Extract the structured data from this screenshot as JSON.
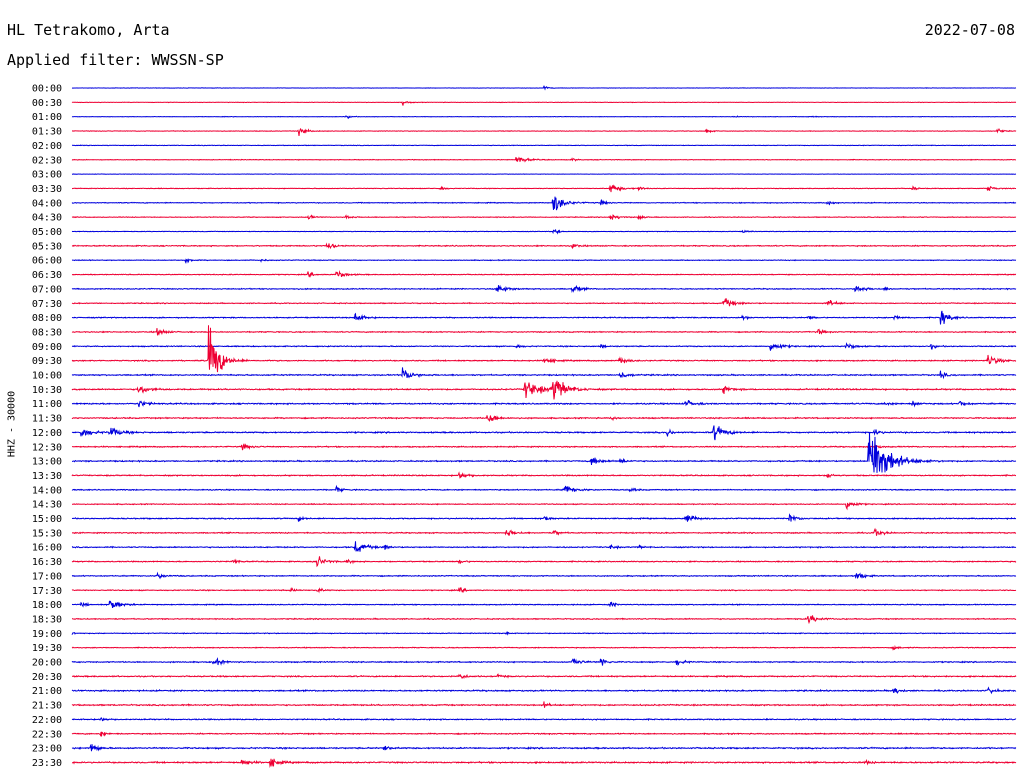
{
  "header": {
    "station": "HL Tetrakomo, Arta",
    "date": "2022-07-08",
    "filter": "Applied filter: WWSSN-SP"
  },
  "channel_label": "HHZ - 30000",
  "colors": {
    "blue": "#0000dd",
    "red": "#ee0033"
  },
  "chart_data": {
    "type": "line",
    "title": "HL Tetrakomo, Arta",
    "subtitle": "Applied filter: WWSSN-SP",
    "ylabel": "HHZ - 30000",
    "tick_labels": [
      "00:00",
      "00:30",
      "01:00",
      "01:30",
      "02:00",
      "02:30",
      "03:00",
      "03:30",
      "04:00",
      "04:30",
      "05:00",
      "05:30",
      "06:00",
      "06:30",
      "07:00",
      "07:30",
      "08:00",
      "08:30",
      "09:00",
      "09:30",
      "10:00",
      "10:30",
      "11:00",
      "11:30",
      "12:00",
      "12:30",
      "13:00",
      "13:30",
      "14:00",
      "14:30",
      "15:00",
      "15:30",
      "16:00",
      "16:30",
      "17:00",
      "17:30",
      "18:00",
      "18:30",
      "19:00",
      "19:30",
      "20:00",
      "20:30",
      "21:00",
      "21:30",
      "22:00",
      "22:30",
      "23:00",
      "23:30"
    ],
    "row_colors": [
      "blue",
      "red"
    ],
    "noise_levels": [
      0.4,
      0.5,
      0.5,
      0.6,
      0.6,
      0.7,
      0.4,
      0.7,
      0.9,
      0.8,
      0.6,
      1.1,
      0.8,
      0.9,
      1.1,
      1.0,
      1.1,
      1.1,
      1.1,
      1.2,
      1.3,
      1.4,
      1.4,
      1.3,
      1.4,
      1.2,
      1.3,
      1.2,
      1.1,
      1.0,
      1.2,
      1.2,
      1.2,
      1.1,
      1.1,
      1.0,
      1.0,
      1.1,
      0.9,
      0.9,
      1.2,
      1.3,
      1.4,
      1.4,
      1.2,
      1.2,
      1.5,
      1.5
    ],
    "events": [
      [
        [
          0.5,
          4,
          1
        ]
      ],
      [
        [
          0.35,
          4,
          1
        ]
      ],
      [
        [
          0.29,
          3,
          1
        ],
        [
          0.7,
          2,
          1
        ],
        [
          0.78,
          2,
          1
        ]
      ],
      [
        [
          0.24,
          6,
          1.5
        ],
        [
          0.67,
          4,
          1
        ],
        [
          0.98,
          4,
          1
        ]
      ],
      [],
      [
        [
          0.47,
          6,
          2
        ],
        [
          0.53,
          2,
          1
        ]
      ],
      [],
      [
        [
          0.39,
          4,
          1
        ],
        [
          0.57,
          7,
          2
        ],
        [
          0.6,
          3,
          1
        ],
        [
          0.89,
          3,
          1
        ],
        [
          0.97,
          6,
          1
        ]
      ],
      [
        [
          0.51,
          16,
          2
        ],
        [
          0.56,
          5,
          1
        ],
        [
          0.8,
          4,
          1
        ]
      ],
      [
        [
          0.25,
          4,
          1
        ],
        [
          0.29,
          5,
          1
        ],
        [
          0.57,
          6,
          1.5
        ],
        [
          0.6,
          3,
          1
        ]
      ],
      [
        [
          0.51,
          6,
          1
        ],
        [
          0.71,
          3,
          1
        ]
      ],
      [
        [
          0.27,
          6,
          1.5
        ],
        [
          0.53,
          4,
          1
        ]
      ],
      [
        [
          0.12,
          4,
          1
        ],
        [
          0.2,
          2,
          1
        ]
      ],
      [
        [
          0.25,
          4,
          1
        ],
        [
          0.28,
          8,
          1.5
        ]
      ],
      [
        [
          0.45,
          7,
          2
        ],
        [
          0.53,
          6,
          1.5
        ],
        [
          0.83,
          8,
          1.5
        ],
        [
          0.86,
          3,
          1
        ]
      ],
      [
        [
          0.69,
          8,
          2
        ],
        [
          0.8,
          6,
          1.5
        ]
      ],
      [
        [
          0.3,
          8,
          1.5
        ],
        [
          0.71,
          4,
          1
        ],
        [
          0.78,
          3,
          1
        ],
        [
          0.87,
          5,
          1
        ],
        [
          0.92,
          14,
          1.5
        ]
      ],
      [
        [
          0.09,
          6,
          1.5
        ],
        [
          0.79,
          5,
          1
        ]
      ],
      [
        [
          0.47,
          4,
          1
        ],
        [
          0.56,
          3,
          1
        ],
        [
          0.74,
          7,
          2
        ],
        [
          0.82,
          6,
          1.5
        ],
        [
          0.91,
          4,
          1
        ]
      ],
      [
        [
          0.145,
          60,
          2
        ],
        [
          0.5,
          6,
          1.5
        ],
        [
          0.58,
          6,
          1.5
        ],
        [
          0.97,
          9,
          2
        ]
      ],
      [
        [
          0.35,
          10,
          2
        ],
        [
          0.58,
          7,
          1.5
        ],
        [
          0.92,
          5,
          1
        ]
      ],
      [
        [
          0.07,
          8,
          2
        ],
        [
          0.48,
          14,
          3
        ],
        [
          0.51,
          20,
          2.5
        ],
        [
          0.69,
          6,
          1.5
        ]
      ],
      [
        [
          0.07,
          6,
          1.5
        ],
        [
          0.65,
          6,
          1.5
        ],
        [
          0.86,
          4,
          1
        ],
        [
          0.89,
          5,
          1
        ],
        [
          0.94,
          6,
          1
        ]
      ],
      [
        [
          0.44,
          10,
          1.5
        ],
        [
          0.57,
          3,
          1
        ]
      ],
      [
        [
          0.01,
          8,
          2
        ],
        [
          0.04,
          8,
          2
        ],
        [
          0.63,
          6,
          1
        ],
        [
          0.68,
          12,
          2
        ],
        [
          0.85,
          6,
          1
        ]
      ],
      [
        [
          0.18,
          5,
          1.5
        ],
        [
          0.85,
          4,
          1
        ]
      ],
      [
        [
          0.55,
          8,
          1.5
        ],
        [
          0.58,
          5,
          1
        ],
        [
          0.845,
          60,
          3.5
        ]
      ],
      [
        [
          0.41,
          6,
          1.5
        ],
        [
          0.8,
          5,
          1
        ]
      ],
      [
        [
          0.28,
          5,
          1
        ],
        [
          0.52,
          9,
          2
        ],
        [
          0.59,
          5,
          1
        ]
      ],
      [
        [
          0.82,
          8,
          1.5
        ]
      ],
      [
        [
          0.24,
          4,
          1
        ],
        [
          0.5,
          4,
          1
        ],
        [
          0.65,
          9,
          1.5
        ],
        [
          0.76,
          7,
          1.5
        ]
      ],
      [
        [
          0.46,
          6,
          1.5
        ],
        [
          0.51,
          5,
          1
        ],
        [
          0.85,
          6,
          1.5
        ]
      ],
      [
        [
          0.3,
          10,
          2
        ],
        [
          0.33,
          5,
          1
        ],
        [
          0.57,
          4,
          1
        ],
        [
          0.6,
          3,
          1
        ]
      ],
      [
        [
          0.17,
          5,
          1
        ],
        [
          0.26,
          9,
          1.5
        ],
        [
          0.29,
          4,
          1
        ],
        [
          0.41,
          4,
          1
        ]
      ],
      [
        [
          0.09,
          5,
          1.5
        ],
        [
          0.83,
          8,
          1.5
        ]
      ],
      [
        [
          0.23,
          4,
          1
        ],
        [
          0.26,
          4,
          1
        ],
        [
          0.41,
          5,
          1
        ]
      ],
      [
        [
          0.01,
          4,
          1
        ],
        [
          0.04,
          8,
          2
        ],
        [
          0.57,
          5,
          1
        ]
      ],
      [
        [
          0.78,
          7,
          2
        ]
      ],
      [
        [
          0.0,
          3,
          0.5
        ],
        [
          0.46,
          3,
          0.5
        ]
      ],
      [
        [
          0.87,
          3,
          1
        ]
      ],
      [
        [
          0.15,
          7,
          1.5
        ],
        [
          0.53,
          7,
          1.5
        ],
        [
          0.56,
          9,
          1
        ],
        [
          0.64,
          5,
          1.5
        ]
      ],
      [
        [
          0.41,
          8,
          1
        ],
        [
          0.45,
          4,
          1
        ]
      ],
      [
        [
          0.87,
          8,
          1
        ],
        [
          0.97,
          9,
          1
        ]
      ],
      [
        [
          0.5,
          4,
          1
        ]
      ],
      [
        [
          0.03,
          4,
          1
        ]
      ],
      [
        [
          0.03,
          5,
          1
        ]
      ],
      [
        [
          0.02,
          12,
          1
        ],
        [
          0.33,
          6,
          1
        ]
      ],
      [
        [
          0.18,
          6,
          1.5
        ],
        [
          0.21,
          8,
          1.5
        ],
        [
          0.84,
          3,
          1
        ]
      ]
    ]
  }
}
